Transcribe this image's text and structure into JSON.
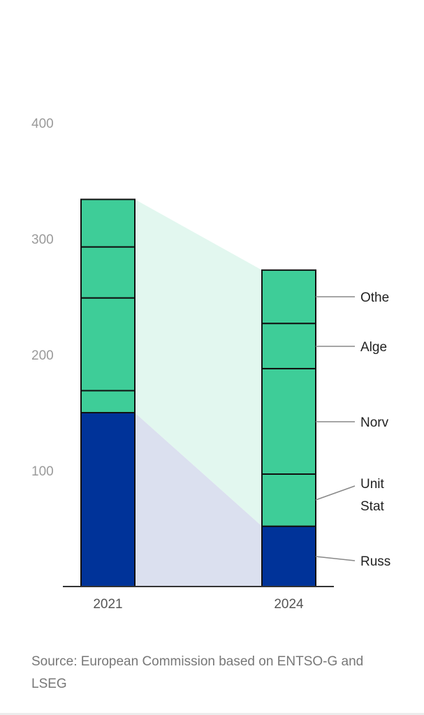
{
  "chart_data": {
    "type": "bar",
    "stacked": true,
    "categories": [
      "2021",
      "2024"
    ],
    "y_ticks": [
      100,
      200,
      300,
      400
    ],
    "ylim": [
      0,
      400
    ],
    "series": [
      {
        "name": "Russ",
        "values": [
          150,
          52
        ],
        "color": "#003399"
      },
      {
        "name": "Unit Stat",
        "values": [
          19,
          45
        ],
        "color": "#3ecd98"
      },
      {
        "name": "Norv",
        "values": [
          80,
          91
        ],
        "color": "#3ecd98"
      },
      {
        "name": "Alge",
        "values": [
          44,
          39
        ],
        "color": "#3ecd98"
      },
      {
        "name": "Othe",
        "values": [
          41,
          46
        ],
        "color": "#3ecd98"
      }
    ],
    "labels": [
      {
        "series": "Othe",
        "lines": [
          "Othe"
        ]
      },
      {
        "series": "Alge",
        "lines": [
          "Alge"
        ]
      },
      {
        "series": "Norv",
        "lines": [
          "Norv"
        ]
      },
      {
        "series": "Unit Stat",
        "lines": [
          "Unit",
          "Stat"
        ]
      },
      {
        "series": "Russ",
        "lines": [
          "Russ"
        ]
      }
    ],
    "colors": {
      "green": "#3ecd98",
      "blue": "#003399",
      "green_band": "#e2f7ef",
      "blue_band": "#dbe0ef"
    }
  },
  "source": "Source: European Commission based on ENTSO-G and LSEG"
}
